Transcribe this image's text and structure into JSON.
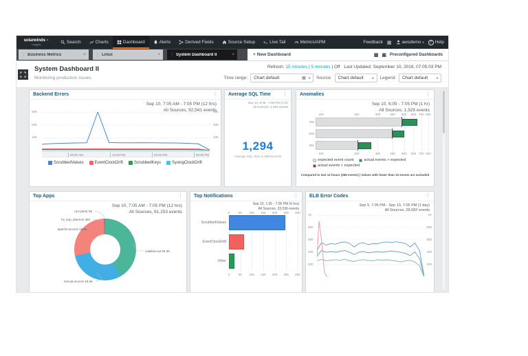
{
  "icons": {
    "menu": "⋮",
    "caret": "▾",
    "plus": "+",
    "close": "×",
    "grip": "⋮",
    "grid": "▦",
    "window": "▣",
    "pipe": "|",
    "flame": "▲"
  },
  "brand": {
    "name": "solarwinds",
    "product": "loggly"
  },
  "nav": {
    "items": [
      {
        "label": "Search",
        "icon": "search"
      },
      {
        "label": "Charts",
        "icon": "charts"
      },
      {
        "label": "Dashboard",
        "icon": "dashboard",
        "active": true
      },
      {
        "label": "Alerts",
        "icon": "alerts"
      },
      {
        "label": "Derived Fields",
        "icon": "derived-fields"
      },
      {
        "label": "Source Setup",
        "icon": "source-setup"
      },
      {
        "label": "Live Tail",
        "icon": "live-tail"
      },
      {
        "label": "Metrics/APM",
        "icon": "metrics"
      }
    ],
    "feedback": "Feedback",
    "user": "awsdemo",
    "help": "Help"
  },
  "tabs": {
    "items": [
      {
        "label": "Business Metrics"
      },
      {
        "label": "Linux"
      },
      {
        "label": "System Dashboard II",
        "active": true
      }
    ],
    "new_dashboard": "New Dashboard",
    "preconfigured": "Preconfigured Dashboards"
  },
  "header": {
    "title": "System Dashboard II",
    "subtitle": "Monitoring production issues",
    "refresh_label": "Refresh:",
    "refresh_opt1": "15 minutes",
    "refresh_opt2": "5 minutes",
    "refresh_off": "Off",
    "last_updated": "Last Updated: September 10, 2019, 07:05:03 PM",
    "time_range_label": "Time range:",
    "time_range_value": "Chart default",
    "source_label": "Source:",
    "source_value": "Chart default",
    "legend_label": "Legend:",
    "legend_value": "Chart default"
  },
  "panels": {
    "backend_errors": {
      "title": "Backend Errors",
      "info_line1": "Sep 10, 7:05 AM - 7:05 PM  (12 hrs)",
      "info_line2": "All Sources, 92,541 events",
      "ymax": 30,
      "y_ticks": [
        {
          "label": "30K",
          "value": 30
        },
        {
          "label": "20K",
          "value": 20
        },
        {
          "label": "10K",
          "value": 10
        }
      ],
      "x_ticks": [
        {
          "label": "09:00 AM",
          "pos": 0.155
        },
        {
          "label": "12:00 PM",
          "pos": 0.405
        },
        {
          "label": "03:00 PM",
          "pos": 0.655
        },
        {
          "label": "06:00 PM",
          "pos": 0.905
        }
      ],
      "unit": "K events",
      "series": [
        {
          "name": "ScrubbedValues",
          "color": "#3f87e0",
          "values": [
            4.8,
            5.4,
            5.7,
            5.9,
            6.0,
            30,
            6.2,
            6.0,
            6.0,
            6.1,
            6.0,
            5.9,
            5.9,
            5.6,
            5.2,
            0.4
          ]
        },
        {
          "name": "EventClockDrift",
          "color": "#f2615c",
          "values": [
            1.3,
            1.3,
            1.3,
            1.3,
            1.3,
            1.35,
            1.3,
            1.3,
            1.3,
            1.3,
            1.3,
            1.3,
            1.3,
            1.3,
            1.2,
            0.1
          ]
        },
        {
          "name": "ScrubbedKeys",
          "color": "#259b55",
          "values": [
            0.9,
            0.9,
            0.9,
            0.9,
            0.9,
            0.95,
            0.9,
            0.9,
            0.9,
            0.9,
            0.9,
            0.9,
            0.9,
            0.9,
            0.85,
            0.05
          ]
        },
        {
          "name": "SyslogClockDrift",
          "color": "#41c5ea",
          "values": [
            0.6,
            0.6,
            0.6,
            0.6,
            0.6,
            0.65,
            0.6,
            0.6,
            0.6,
            0.6,
            0.6,
            0.6,
            0.6,
            0.6,
            0.55,
            0.05
          ]
        }
      ]
    },
    "average_sql_time": {
      "title": "Average SQL Time",
      "info_line1": "Sep 10, 6:05 - 7:05 PM (1 hr)",
      "info_line2": "All Sources, 1,294 events",
      "value": "1,294",
      "caption": "Average SQL Time in Milliseconds"
    },
    "anomalies": {
      "title": "Anomalies",
      "info_line1": "Sep 10, 6:05 - 7:05 PM  (1 hr)",
      "info_line2": "All Sources, 1,528 events",
      "scale": "log",
      "axis_ticks": [
        100,
        200,
        300,
        400,
        500,
        600,
        700,
        800
      ],
      "rows": [
        {
          "category": "200",
          "expected": 480,
          "actual": 650
        },
        {
          "category": "500",
          "expected": 400,
          "actual": 500
        },
        {
          "category": "302",
          "expected": 205,
          "actual": 265
        }
      ],
      "legend": [
        {
          "label": "expected event count",
          "color": "#dcdddf"
        },
        {
          "label": "actual events > expected",
          "color": "#2e8f5a"
        },
        {
          "label": "actual events < expected",
          "color": "#8e3b33"
        }
      ],
      "footnote": "Compared to last 12 hours (368 events)  |  Values with fewer than 10 events are excluded"
    },
    "top_apps": {
      "title": "Top Apps",
      "info_line1": "Sep 10, 7:05 AM - 7:05 PM  (12 hrs)",
      "info_line2": "All Sources, 61,153 events",
      "slices": [
        {
          "label": "catalina-out 25.3K",
          "value": 25300,
          "color": "#4cb69a"
        },
        {
          "label": "tomcat-access 18.5K",
          "value": 18500,
          "color": "#41aee4"
        },
        {
          "label": "apache-access 16.8K",
          "value": 16800,
          "color": "#f4837b"
        },
        {
          "label": "hv_kvp_daemon 450",
          "value": 450,
          "color": "#7d8a96"
        },
        {
          "label": "run-parts( 55",
          "value": 55,
          "color": "#c05a50"
        }
      ]
    },
    "top_notifications": {
      "title": "Top Notifications",
      "info_line1": "Sep 10, 1:05 - 7:05 PM  (6 hrs)",
      "info_line2": "All Sources, 33,036 events",
      "xmax": 30000,
      "axis_ticks": [
        {
          "label": "0",
          "value": 0
        },
        {
          "label": "5K",
          "value": 5000
        },
        {
          "label": "10K",
          "value": 10000
        },
        {
          "label": "15K",
          "value": 15000
        },
        {
          "label": "20K",
          "value": 20000
        },
        {
          "label": "25K",
          "value": 25000
        },
        {
          "label": "30K",
          "value": 30000
        }
      ],
      "bars": [
        {
          "label": "ScrubbedValues",
          "value": 24500,
          "color": "#3f87e0"
        },
        {
          "label": "EventClockDrift",
          "value": 6500,
          "color": "#f2615c"
        },
        {
          "label": "Other",
          "value": 2500,
          "color": "#259b55"
        }
      ]
    },
    "elb_error_codes": {
      "title": "ELB Error Codes",
      "info_line1": "Sep 9, 7:05 PM - Sep 10, 7:05 PM  (1 day)",
      "info_line2": "All Sources, 28,682 events",
      "ymax": 1000,
      "y_ticks": [
        {
          "label": "1K",
          "value": 1000
        },
        {
          "label": "800",
          "value": 800
        },
        {
          "label": "600",
          "value": 600
        },
        {
          "label": "400",
          "value": 400
        },
        {
          "label": "200",
          "value": 200
        }
      ],
      "series": [
        {
          "color": "#5f9bd8",
          "values": [
            430,
            555,
            515,
            540,
            530,
            558,
            568,
            542,
            485,
            540,
            552,
            522,
            540,
            538,
            558,
            568,
            558,
            570,
            558,
            540,
            485,
            550,
            430,
            10
          ]
        },
        {
          "color": "#6f9aa8",
          "values": [
            335,
            430,
            398,
            412,
            400,
            418,
            428,
            398,
            362,
            400,
            412,
            390,
            400,
            410,
            400,
            412,
            420,
            410,
            398,
            380,
            345,
            405,
            300,
            5
          ]
        },
        {
          "color": "#77b98c",
          "values": [
            265,
            282,
            262,
            270,
            280,
            268,
            288,
            262,
            250,
            270,
            280,
            268,
            262,
            280,
            270,
            278,
            268,
            258,
            242,
            262,
            270,
            242,
            180,
            3
          ]
        },
        {
          "color": "#f2929b",
          "points": [
            {
              "x": 0,
              "v": 320
            },
            {
              "x": 0.02,
              "v": 900
            },
            {
              "x": 0.045,
              "v": 560
            },
            {
              "x": 0.07,
              "v": 80
            },
            {
              "x": 0.095,
              "v": 0
            }
          ]
        }
      ]
    }
  }
}
